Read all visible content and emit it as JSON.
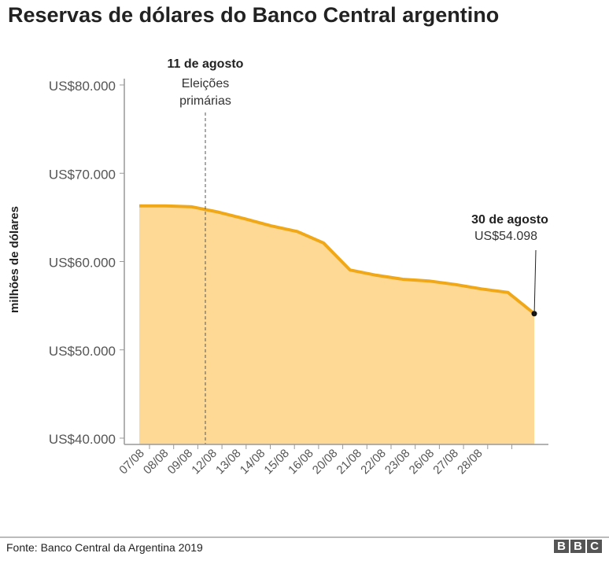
{
  "title": "Reservas de dólares do Banco Central argentino",
  "chart_data": {
    "type": "area",
    "title": "Reservas de dólares do Banco Central argentino",
    "ylabel": "milhões de dólares",
    "xlabel": "",
    "ylim": [
      40000,
      80000
    ],
    "yticks": [
      40000,
      50000,
      60000,
      70000,
      80000
    ],
    "ytick_labels": [
      "US$40.000",
      "US$50.000",
      "US$60.000",
      "US$70.000",
      "US$80.000"
    ],
    "categories": [
      "07/08",
      "08/08",
      "09/08",
      "12/08",
      "13/08",
      "14/08",
      "15/08",
      "16/08",
      "20/08",
      "21/08",
      "22/08",
      "23/08",
      "26/08",
      "27/08",
      "28/08",
      "30/08"
    ],
    "xtick_labels": [
      "07/08",
      "08/08",
      "09/08",
      "12/08",
      "13/08",
      "14/08",
      "15/08",
      "16/08",
      "20/08",
      "21/08",
      "22/08",
      "23/08",
      "26/08",
      "27/08",
      "28/08"
    ],
    "values": [
      66300,
      66300,
      66200,
      65600,
      64850,
      64050,
      63400,
      62100,
      59050,
      58450,
      58000,
      57800,
      57400,
      56900,
      56500,
      54098
    ],
    "grid": false,
    "colors": {
      "line": "#f0a818",
      "fill": "#fdd995"
    },
    "annotations": [
      {
        "title": "11 de agosto",
        "text_line1": "Eleições",
        "text_line2": "primárias",
        "at": "12/08"
      },
      {
        "title": "30 de agosto",
        "text": "US$54.098",
        "at": "30/08"
      }
    ]
  },
  "footer": {
    "source": "Fonte: Banco Central da Argentina 2019",
    "logo": "BBC"
  }
}
